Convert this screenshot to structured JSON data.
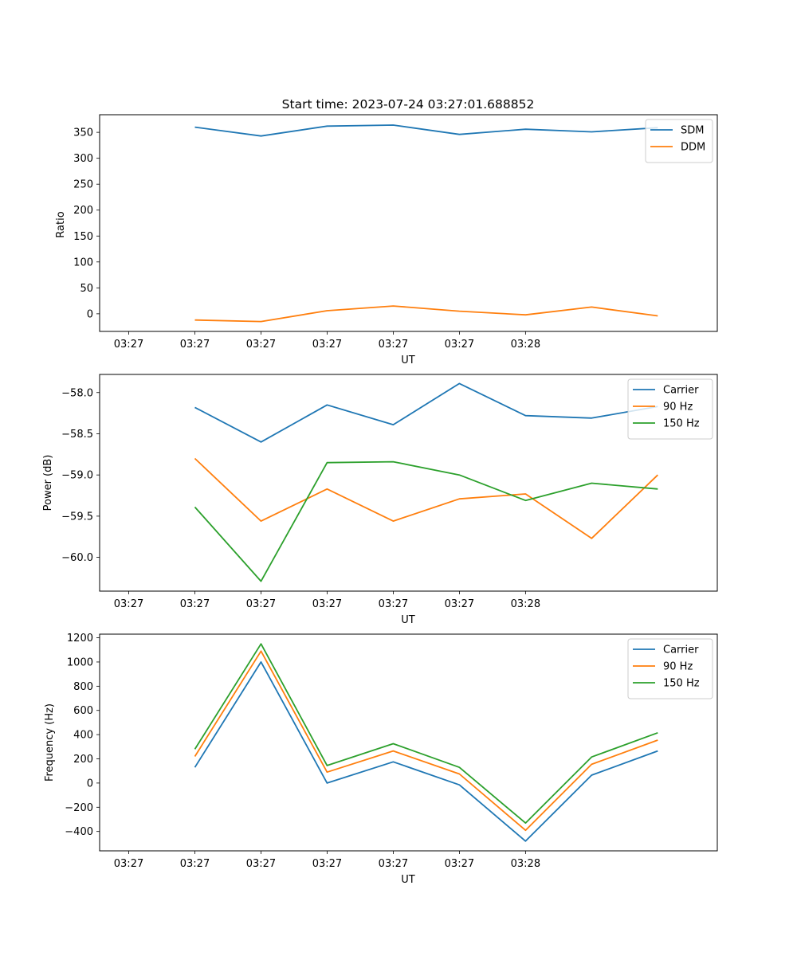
{
  "chart_data": [
    {
      "type": "line",
      "title": "Start time: 2023-07-24 03:27:01.688852",
      "xlabel": "UT",
      "ylabel": "Ratio",
      "x_tick_labels": [
        "03:27",
        "03:27",
        "03:27",
        "03:27",
        "03:27",
        "03:27",
        "03:28"
      ],
      "xlim": [
        -0.44,
        8.9
      ],
      "x": [
        1,
        2,
        3,
        4,
        5,
        6,
        7,
        8
      ],
      "ylim": [
        -34,
        384
      ],
      "yticks": [
        0,
        50,
        100,
        150,
        200,
        250,
        300,
        350
      ],
      "legend_position": "top-right",
      "series": [
        {
          "name": "SDM",
          "color": "#1f77b4",
          "values": [
            360,
            343,
            362,
            364,
            346,
            356,
            351,
            359
          ]
        },
        {
          "name": "DDM",
          "color": "#ff7f0e",
          "values": [
            -12,
            -15,
            6,
            15,
            5,
            -2,
            13,
            -4
          ]
        }
      ]
    },
    {
      "type": "line",
      "title": "",
      "xlabel": "UT",
      "ylabel": "Power (dB)",
      "x_tick_labels": [
        "03:27",
        "03:27",
        "03:27",
        "03:27",
        "03:27",
        "03:27",
        "03:28"
      ],
      "xlim": [
        -0.44,
        8.9
      ],
      "x": [
        1,
        2,
        3,
        4,
        5,
        6,
        7,
        8
      ],
      "ylim": [
        -60.41,
        -57.78
      ],
      "yticks": [
        -60.0,
        -59.5,
        -59.0,
        -58.5,
        -58.0
      ],
      "ytick_labels": [
        "−60.0",
        "−59.5",
        "−59.0",
        "−58.5",
        "−58.0"
      ],
      "legend_position": "top-right",
      "series": [
        {
          "name": "Carrier",
          "color": "#1f77b4",
          "values": [
            -58.18,
            -58.6,
            -58.15,
            -58.39,
            -57.89,
            -58.28,
            -58.31,
            -58.17
          ]
        },
        {
          "name": "90 Hz",
          "color": "#ff7f0e",
          "values": [
            -58.8,
            -59.56,
            -59.17,
            -59.56,
            -59.29,
            -59.23,
            -59.77,
            -59.0
          ]
        },
        {
          "name": "150 Hz",
          "color": "#2ca02c",
          "values": [
            -59.39,
            -60.29,
            -58.85,
            -58.84,
            -59.0,
            -59.31,
            -59.1,
            -59.17
          ]
        }
      ]
    },
    {
      "type": "line",
      "title": "",
      "xlabel": "UT",
      "ylabel": "Frequency (Hz)",
      "x_tick_labels": [
        "03:27",
        "03:27",
        "03:27",
        "03:27",
        "03:27",
        "03:27",
        "03:28"
      ],
      "xlim": [
        -0.44,
        8.9
      ],
      "x": [
        1,
        2,
        3,
        4,
        5,
        6,
        7,
        8
      ],
      "ylim": [
        -560,
        1230
      ],
      "yticks": [
        -400,
        -200,
        0,
        200,
        400,
        600,
        800,
        1000,
        1200
      ],
      "ytick_labels": [
        "−400",
        "−200",
        "0",
        "200",
        "400",
        "600",
        "800",
        "1000",
        "1200"
      ],
      "legend_position": "top-right",
      "series": [
        {
          "name": "Carrier",
          "color": "#1f77b4",
          "values": [
            130,
            1000,
            0,
            175,
            -15,
            -480,
            65,
            265
          ]
        },
        {
          "name": "90 Hz",
          "color": "#ff7f0e",
          "values": [
            220,
            1090,
            90,
            265,
            75,
            -390,
            155,
            355
          ]
        },
        {
          "name": "150 Hz",
          "color": "#2ca02c",
          "values": [
            280,
            1150,
            145,
            325,
            130,
            -330,
            215,
            415
          ]
        }
      ]
    }
  ]
}
